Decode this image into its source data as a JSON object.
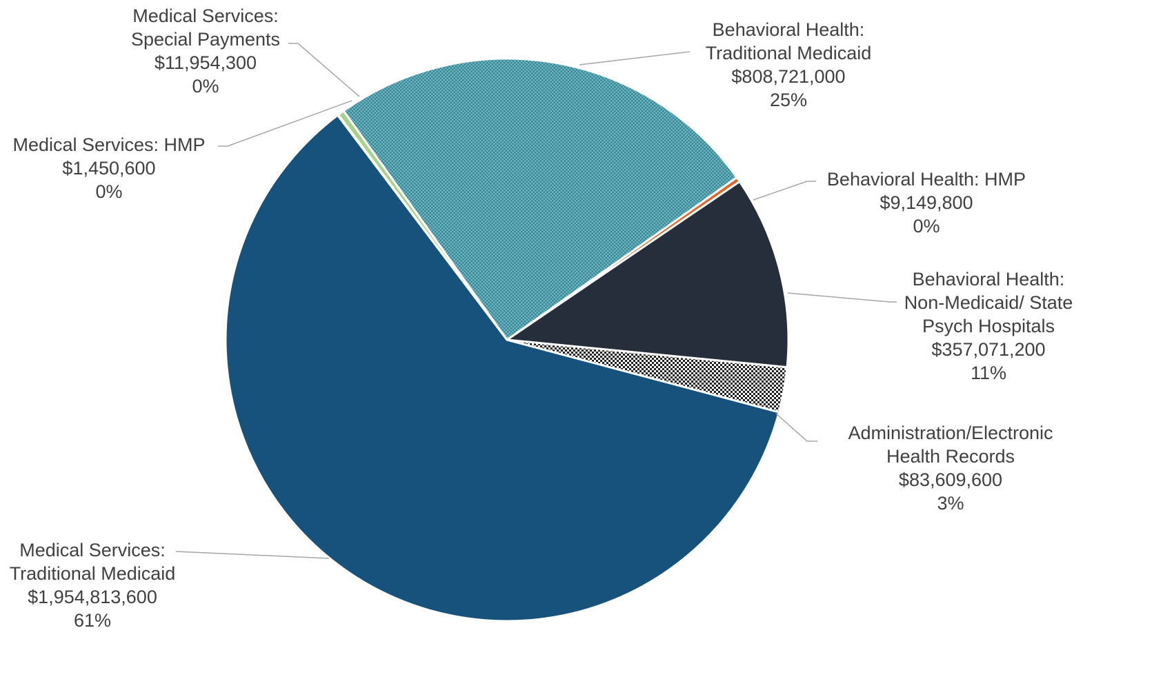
{
  "chart_data": {
    "type": "pie",
    "title": "",
    "legend": "none",
    "slices": [
      {
        "category": "Behavioral Health: Traditional Medicaid",
        "label_lines": [
          "Behavioral Health:",
          "Traditional Medicaid"
        ],
        "amount": "$808,721,000",
        "value": 808721000,
        "percent": "25%",
        "color": "#2e8a99",
        "pattern": "dots"
      },
      {
        "category": "Behavioral Health: HMP",
        "label_lines": [
          "Behavioral Health: HMP"
        ],
        "amount": "$9,149,800",
        "value": 9149800,
        "percent": "0%",
        "color": "#e0652a",
        "pattern": "solid"
      },
      {
        "category": "Behavioral Health: Non-Medicaid/ State Psych Hospitals",
        "label_lines": [
          "Behavioral Health:",
          "Non-Medicaid/ State",
          "Psych Hospitals"
        ],
        "amount": "$357,071,200",
        "value": 357071200,
        "percent": "11%",
        "color": "#262e3b",
        "pattern": "solid"
      },
      {
        "category": "Administration/Electronic Health Records",
        "label_lines": [
          "Administration/Electronic",
          "Health Records"
        ],
        "amount": "$83,609,600",
        "value": 83609600,
        "percent": "3%",
        "color": "#1f1f1f",
        "pattern": "checker"
      },
      {
        "category": "Medical Services: Traditional Medicaid",
        "label_lines": [
          "Medical Services:",
          "Traditional Medicaid"
        ],
        "amount": "$1,954,813,600",
        "value": 1954813600,
        "percent": "61%",
        "color": "#16527c",
        "pattern": "solid"
      },
      {
        "category": "Medical Services: HMP",
        "label_lines": [
          "Medical Services: HMP"
        ],
        "amount": "$1,450,600",
        "value": 1450600,
        "percent": "0%",
        "color": "#2a3f5f",
        "pattern": "solid"
      },
      {
        "category": "Medical Services: Special Payments",
        "label_lines": [
          "Medical Services:",
          "Special Payments"
        ],
        "amount": "$11,954,300",
        "value": 11954300,
        "percent": "0%",
        "color": "#a9d18e",
        "pattern": "solid"
      }
    ]
  }
}
